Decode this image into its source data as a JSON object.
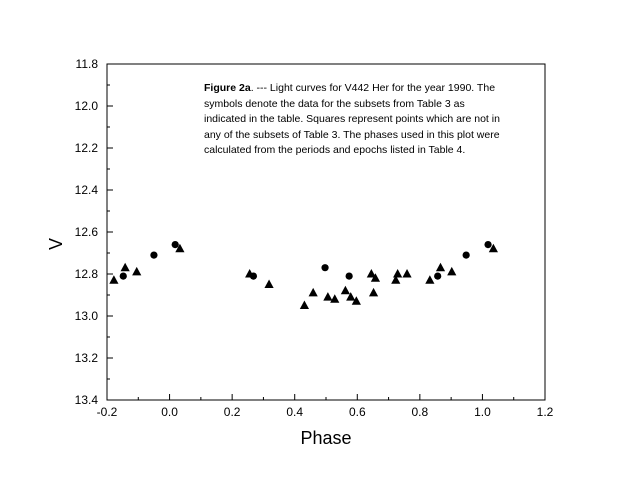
{
  "caption": {
    "lead": "Figure 2a",
    "text": ". --- Light curves for V442 Her for the year 1990.  The symbols denote the data for the subsets from Table 3 as indicated in the table.  Squares represent points which are not in any of the subsets of Table 3.  The phases used in this plot were calculated from the periods and epochs listed in Table 4."
  },
  "chart_data": {
    "type": "scatter",
    "title": "",
    "xlabel": "Phase",
    "ylabel": "V",
    "xlim": [
      -0.2,
      1.2
    ],
    "ylim": [
      11.8,
      13.4
    ],
    "y_inverted": true,
    "x_ticks": [
      "-0.2",
      "0.0",
      "0.2",
      "0.4",
      "0.6",
      "0.8",
      "1.0",
      "1.2"
    ],
    "y_ticks": [
      "11.8",
      "12.0",
      "12.2",
      "12.4",
      "12.6",
      "12.8",
      "13.0",
      "13.2",
      "13.4"
    ],
    "grid": false,
    "series": [
      {
        "marker": "circle",
        "points": [
          {
            "x": -0.148,
            "y": 12.81
          },
          {
            "x": -0.05,
            "y": 12.71
          },
          {
            "x": 0.018,
            "y": 12.66
          },
          {
            "x": 0.268,
            "y": 12.81
          },
          {
            "x": 0.497,
            "y": 12.77
          },
          {
            "x": 0.574,
            "y": 12.81
          },
          {
            "x": 0.857,
            "y": 12.81
          },
          {
            "x": 0.948,
            "y": 12.71
          },
          {
            "x": 1.018,
            "y": 12.66
          }
        ]
      },
      {
        "marker": "triangle",
        "points": [
          {
            "x": -0.178,
            "y": 12.83
          },
          {
            "x": -0.142,
            "y": 12.77
          },
          {
            "x": -0.105,
            "y": 12.79
          },
          {
            "x": 0.033,
            "y": 12.68
          },
          {
            "x": 0.256,
            "y": 12.8
          },
          {
            "x": 0.318,
            "y": 12.85
          },
          {
            "x": 0.431,
            "y": 12.95
          },
          {
            "x": 0.459,
            "y": 12.89
          },
          {
            "x": 0.506,
            "y": 12.91
          },
          {
            "x": 0.528,
            "y": 12.92
          },
          {
            "x": 0.562,
            "y": 12.88
          },
          {
            "x": 0.579,
            "y": 12.91
          },
          {
            "x": 0.597,
            "y": 12.93
          },
          {
            "x": 0.645,
            "y": 12.8
          },
          {
            "x": 0.652,
            "y": 12.89
          },
          {
            "x": 0.658,
            "y": 12.82
          },
          {
            "x": 0.723,
            "y": 12.83
          },
          {
            "x": 0.729,
            "y": 12.8
          },
          {
            "x": 0.759,
            "y": 12.8
          },
          {
            "x": 0.832,
            "y": 12.83
          },
          {
            "x": 0.866,
            "y": 12.77
          },
          {
            "x": 0.902,
            "y": 12.79
          },
          {
            "x": 1.035,
            "y": 12.68
          }
        ]
      }
    ]
  }
}
